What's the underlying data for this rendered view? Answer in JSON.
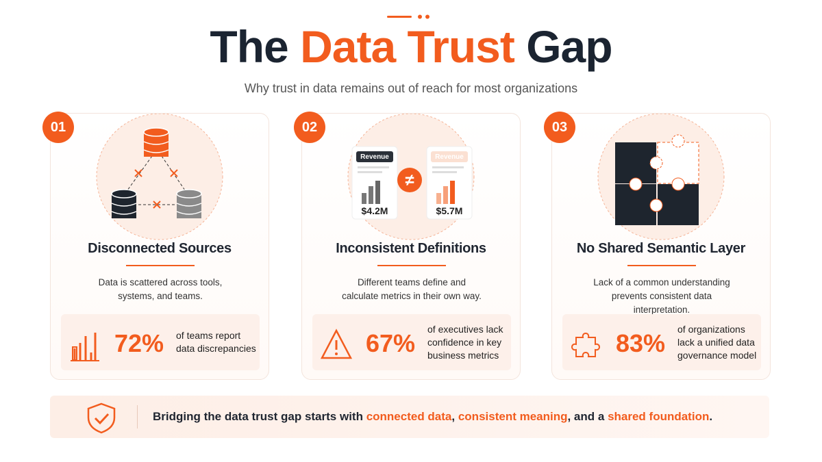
{
  "header": {
    "title": {
      "before": "The",
      "highlight": "Data Trust",
      "after": "Gap"
    },
    "subtitle": "Why trust in data remains out of reach for most organizations"
  },
  "cards": [
    {
      "number": "01",
      "title": "Disconnected Sources",
      "description": "Data is scattered across tools, systems, and teams.",
      "stat": {
        "value": "72%",
        "text": "of teams report data discrepancies"
      }
    },
    {
      "number": "02",
      "title": "Inconsistent Definitions",
      "description": "Different teams define and calculate metrics in their own way.",
      "illustration": {
        "left_label": "Revenue",
        "left_value": "$4.2M",
        "symbol": "≠",
        "right_label": "Revenue",
        "right_value": "$5.7M"
      },
      "stat": {
        "value": "67%",
        "text": "of executives lack confidence in key business metrics"
      }
    },
    {
      "number": "03",
      "title": "No Shared Semantic Layer",
      "description": "Lack of a common understanding prevents consistent data interpretation.",
      "stat": {
        "value": "83%",
        "text": "of organizations lack a unified data governance model"
      }
    }
  ],
  "footer": {
    "parts": [
      "Bridging the data trust gap starts with ",
      "connected data",
      ", ",
      "consistent meaning",
      ", and a ",
      "shared foundation",
      "."
    ]
  }
}
